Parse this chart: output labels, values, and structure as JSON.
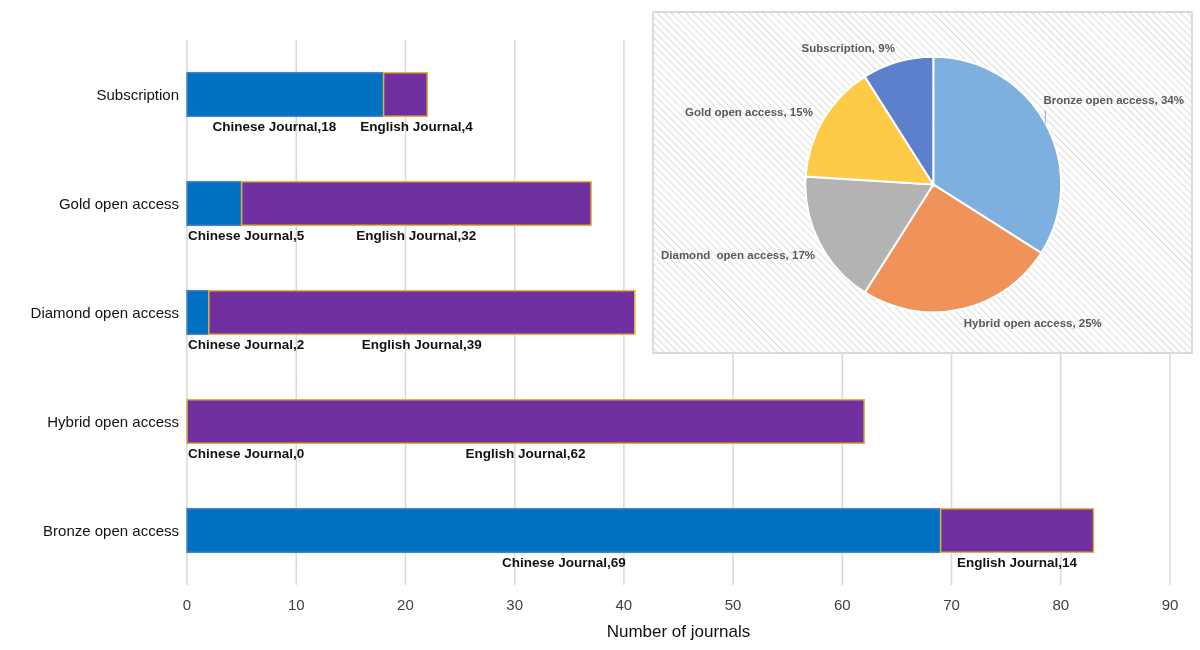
{
  "chart_data": [
    {
      "type": "bar",
      "orientation": "horizontal",
      "stacked": true,
      "categories": [
        "Subscription",
        "Gold open access",
        "Diamond open access",
        "Hybrid open access",
        "Bronze open access"
      ],
      "series": [
        {
          "color": "#0070c0",
          "values": [
            18,
            5,
            2,
            0,
            69
          ],
          "value_labels": [
            "Chinese Journal,18",
            "Chinese Journal,5",
            "Chinese Journal,2",
            null,
            "Chinese Journal,69"
          ]
        },
        {
          "color": "#7030a0",
          "values": [
            4,
            32,
            39,
            62,
            14
          ],
          "value_labels": [
            "English Journal,4",
            "English Journal,32",
            "English Journal,39",
            "English Journal,62",
            "English Journal,14"
          ]
        }
      ],
      "annotations": [
        {
          "text": "Chinese Journal,0",
          "x": 0,
          "y": "Hybrid open access"
        }
      ],
      "xlabel": "Number of journals",
      "xlim": [
        0,
        90
      ],
      "xticks": [
        0,
        10,
        20,
        30,
        40,
        50,
        60,
        70,
        80,
        90
      ],
      "grid": "x"
    },
    {
      "type": "pie",
      "categories": [
        "Bronze open access",
        "Hybrid open access",
        "Diamond  open access",
        "Gold open access",
        "Subscription"
      ],
      "values": [
        34,
        25,
        17,
        15,
        9
      ],
      "colors": [
        "#7eb0df",
        "#f0935a",
        "#b3b3b3",
        "#fdcb47",
        "#5c80cc"
      ],
      "value_labels": [
        "34%",
        "25%",
        "17%",
        "15%",
        "9%"
      ]
    }
  ]
}
